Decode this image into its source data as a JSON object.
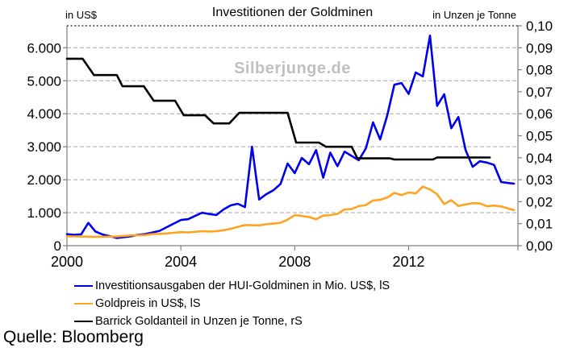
{
  "header": {
    "left_unit": "in US$",
    "title": "Investitionen der Goldminen",
    "right_unit": "in Unzen je Tonne"
  },
  "watermark": "Silberjunge.de",
  "source": {
    "text": "Quelle: Bloomberg"
  },
  "colors": {
    "capex_line": "#0000ee",
    "gold_line": "#ffa320",
    "grade_line": "#000000",
    "gridline": "#a6a6a6",
    "top_gridline": "#3d3d3d",
    "axis": "#7f7f7f",
    "watermark": "#c0c0c0"
  },
  "chart_data": {
    "type": "line",
    "title": "Investitionen der Goldminen",
    "grid": "horizontal dashed at left-axis ticks, dotted top border at right-axis max",
    "legend_position": "bottom-left",
    "x_axis": {
      "range": [
        2000,
        2015.84
      ],
      "tick_values": [
        2000,
        2004,
        2008,
        2012
      ],
      "tick_labels": [
        "2000",
        "2004",
        "2008",
        "2012"
      ]
    },
    "y_left": {
      "label": "in US$",
      "range": [
        0,
        6667
      ],
      "tick_values": [
        6000,
        5000,
        4000,
        3000,
        2000,
        1000,
        0
      ],
      "tick_labels": [
        "6.000",
        "5.000",
        "4.000",
        "3.000",
        "2.000",
        "1.000",
        "0"
      ]
    },
    "y_right": {
      "label": "in Unzen je Tonne",
      "range": [
        0,
        0.1
      ],
      "tick_values": [
        0.1,
        0.09,
        0.08,
        0.07,
        0.06,
        0.05,
        0.04,
        0.03,
        0.02,
        0.01,
        0.0
      ],
      "tick_labels": [
        "0,10",
        "0,09",
        "0,08",
        "0,07",
        "0,06",
        "0,05",
        "0,04",
        "0,03",
        "0,02",
        "0,01",
        "0,00"
      ]
    },
    "series": [
      {
        "name": "Investitionsausgaben der HUI-Goldminen in Mio. US$, lS",
        "axis": "left",
        "color": "#0000ee",
        "points": [
          [
            2000,
            350
          ],
          [
            2000.25,
            330
          ],
          [
            2000.5,
            345
          ],
          [
            2000.75,
            690
          ],
          [
            2001,
            430
          ],
          [
            2001.25,
            340
          ],
          [
            2001.5,
            290
          ],
          [
            2001.75,
            235
          ],
          [
            2002,
            260
          ],
          [
            2002.25,
            285
          ],
          [
            2002.5,
            330
          ],
          [
            2002.75,
            350
          ],
          [
            2003,
            400
          ],
          [
            2003.25,
            450
          ],
          [
            2003.5,
            560
          ],
          [
            2003.75,
            670
          ],
          [
            2004,
            780
          ],
          [
            2004.25,
            800
          ],
          [
            2004.5,
            900
          ],
          [
            2004.75,
            1000
          ],
          [
            2005,
            960
          ],
          [
            2005.25,
            930
          ],
          [
            2005.5,
            1100
          ],
          [
            2005.75,
            1220
          ],
          [
            2006,
            1270
          ],
          [
            2006.25,
            1170
          ],
          [
            2006.5,
            3000
          ],
          [
            2006.75,
            1400
          ],
          [
            2007,
            1560
          ],
          [
            2007.25,
            1680
          ],
          [
            2007.5,
            1870
          ],
          [
            2007.75,
            2490
          ],
          [
            2008,
            2200
          ],
          [
            2008.25,
            2660
          ],
          [
            2008.5,
            2470
          ],
          [
            2008.75,
            2900
          ],
          [
            2009,
            2060
          ],
          [
            2009.25,
            2820
          ],
          [
            2009.5,
            2410
          ],
          [
            2009.75,
            2850
          ],
          [
            2010,
            2720
          ],
          [
            2010.25,
            2590
          ],
          [
            2010.5,
            2950
          ],
          [
            2010.75,
            3740
          ],
          [
            2011,
            3220
          ],
          [
            2011.25,
            3950
          ],
          [
            2011.5,
            4880
          ],
          [
            2011.75,
            4930
          ],
          [
            2012,
            4600
          ],
          [
            2012.25,
            5250
          ],
          [
            2012.5,
            5130
          ],
          [
            2012.75,
            6370
          ],
          [
            2013,
            4240
          ],
          [
            2013.25,
            4590
          ],
          [
            2013.5,
            3560
          ],
          [
            2013.75,
            3900
          ],
          [
            2014,
            2900
          ],
          [
            2014.25,
            2390
          ],
          [
            2014.5,
            2560
          ],
          [
            2014.75,
            2520
          ],
          [
            2015,
            2450
          ],
          [
            2015.25,
            1930
          ],
          [
            2015.5,
            1900
          ],
          [
            2015.7,
            1880
          ]
        ]
      },
      {
        "name": "Goldpreis in US$, lS",
        "axis": "left",
        "color": "#ffa320",
        "points": [
          [
            2000,
            285
          ],
          [
            2000.25,
            280
          ],
          [
            2000.5,
            278
          ],
          [
            2000.75,
            270
          ],
          [
            2001,
            266
          ],
          [
            2001.25,
            272
          ],
          [
            2001.5,
            274
          ],
          [
            2001.75,
            278
          ],
          [
            2002,
            295
          ],
          [
            2002.25,
            312
          ],
          [
            2002.5,
            316
          ],
          [
            2002.75,
            322
          ],
          [
            2003,
            355
          ],
          [
            2003.25,
            360
          ],
          [
            2003.5,
            370
          ],
          [
            2003.75,
            390
          ],
          [
            2004,
            410
          ],
          [
            2004.25,
            400
          ],
          [
            2004.5,
            420
          ],
          [
            2004.75,
            440
          ],
          [
            2005,
            430
          ],
          [
            2005.25,
            440
          ],
          [
            2005.5,
            470
          ],
          [
            2005.75,
            510
          ],
          [
            2006,
            570
          ],
          [
            2006.25,
            625
          ],
          [
            2006.5,
            620
          ],
          [
            2006.75,
            615
          ],
          [
            2007,
            650
          ],
          [
            2007.25,
            670
          ],
          [
            2007.5,
            690
          ],
          [
            2007.75,
            790
          ],
          [
            2008,
            925
          ],
          [
            2008.25,
            900
          ],
          [
            2008.5,
            870
          ],
          [
            2008.75,
            800
          ],
          [
            2009,
            910
          ],
          [
            2009.25,
            925
          ],
          [
            2009.5,
            965
          ],
          [
            2009.75,
            1100
          ],
          [
            2010,
            1110
          ],
          [
            2010.25,
            1200
          ],
          [
            2010.5,
            1230
          ],
          [
            2010.75,
            1370
          ],
          [
            2011,
            1390
          ],
          [
            2011.25,
            1460
          ],
          [
            2011.5,
            1600
          ],
          [
            2011.75,
            1530
          ],
          [
            2012,
            1615
          ],
          [
            2012.25,
            1585
          ],
          [
            2012.5,
            1790
          ],
          [
            2012.75,
            1705
          ],
          [
            2013,
            1560
          ],
          [
            2013.25,
            1260
          ],
          [
            2013.5,
            1380
          ],
          [
            2013.75,
            1205
          ],
          [
            2014,
            1250
          ],
          [
            2014.25,
            1290
          ],
          [
            2014.5,
            1280
          ],
          [
            2014.75,
            1200
          ],
          [
            2015,
            1215
          ],
          [
            2015.25,
            1190
          ],
          [
            2015.5,
            1125
          ],
          [
            2015.7,
            1080
          ]
        ]
      },
      {
        "name": "Barrick Goldanteil in Unzen je Tonne, rS",
        "axis": "right",
        "color": "#000000",
        "points": [
          [
            2000,
            0.085
          ],
          [
            2000.55,
            0.085
          ],
          [
            2000.95,
            0.0776
          ],
          [
            2001.75,
            0.0776
          ],
          [
            2001.95,
            0.0725
          ],
          [
            2002.7,
            0.0725
          ],
          [
            2003.05,
            0.0659
          ],
          [
            2003.8,
            0.0659
          ],
          [
            2004.1,
            0.0593
          ],
          [
            2004.85,
            0.0593
          ],
          [
            2005.15,
            0.0556
          ],
          [
            2005.7,
            0.0556
          ],
          [
            2006.05,
            0.0604
          ],
          [
            2007.75,
            0.0604
          ],
          [
            2008.05,
            0.0469
          ],
          [
            2008.85,
            0.0469
          ],
          [
            2009.1,
            0.045
          ],
          [
            2010,
            0.045
          ],
          [
            2010.2,
            0.0397
          ],
          [
            2011.35,
            0.0397
          ],
          [
            2011.5,
            0.0392
          ],
          [
            2012.85,
            0.0392
          ],
          [
            2013,
            0.0401
          ],
          [
            2014.85,
            0.0401
          ]
        ]
      }
    ]
  }
}
